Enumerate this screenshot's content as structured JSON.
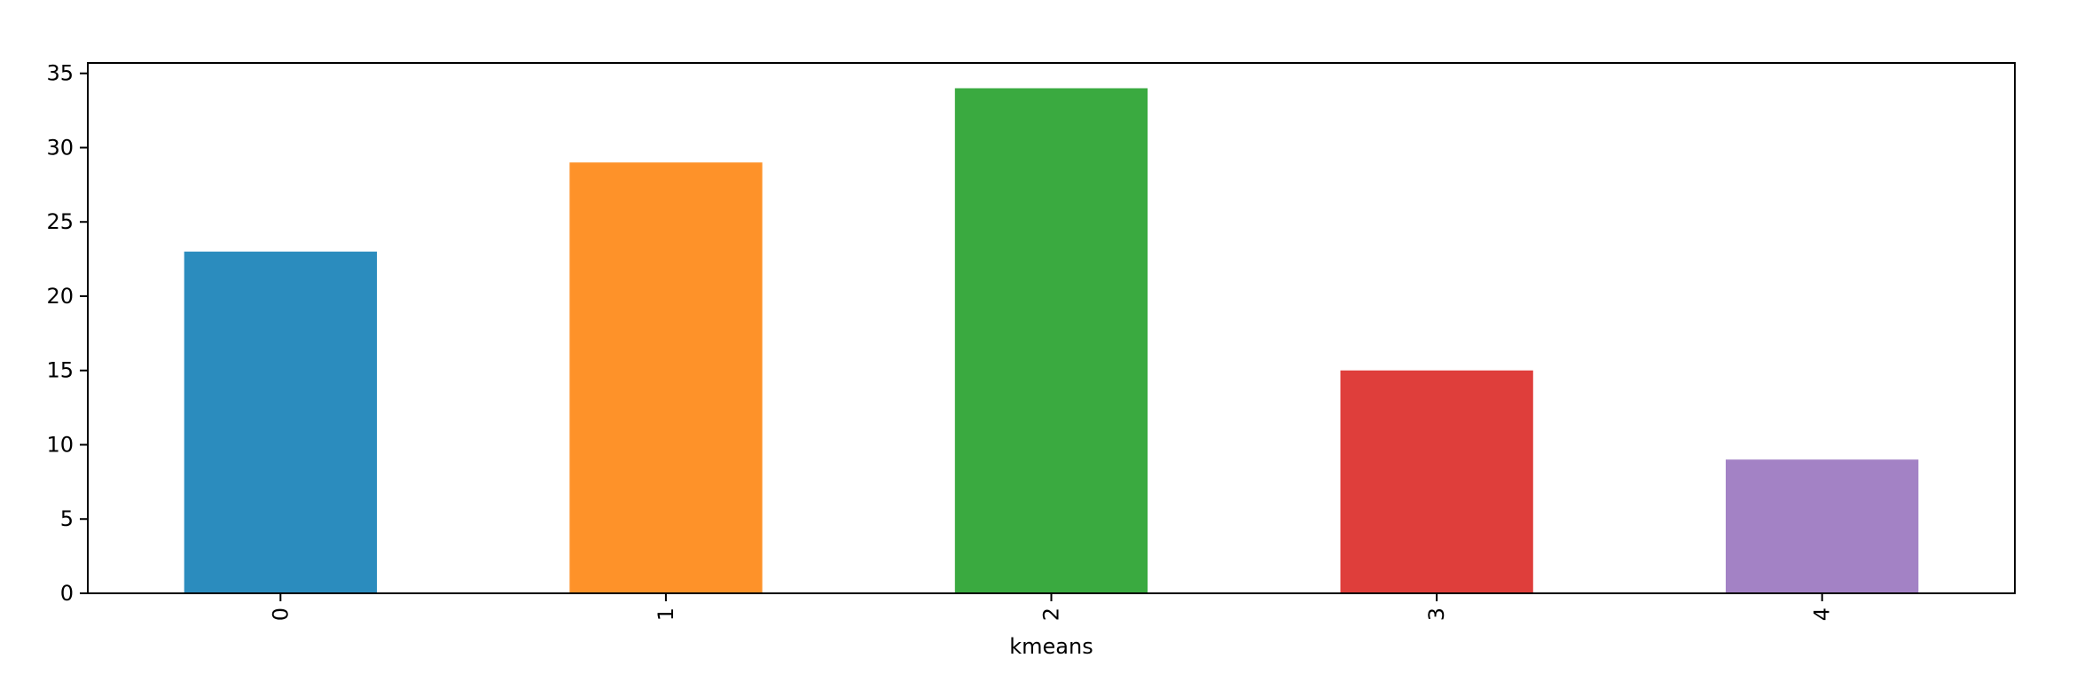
{
  "chart_data": {
    "type": "bar",
    "title": "",
    "xlabel": "kmeans",
    "ylabel": "",
    "categories": [
      "0",
      "1",
      "2",
      "3",
      "4"
    ],
    "values": [
      23,
      29,
      34,
      15,
      9
    ],
    "ylim": [
      0,
      35.7
    ],
    "yticks": [
      0,
      5,
      10,
      15,
      20,
      25,
      30,
      35
    ],
    "grid": false,
    "legend": "none",
    "x_tick_rotation": "vertical",
    "colors": [
      "#2b8cbe",
      "#fe9229",
      "#3aaa40",
      "#df3e3b",
      "#a382c5"
    ]
  }
}
